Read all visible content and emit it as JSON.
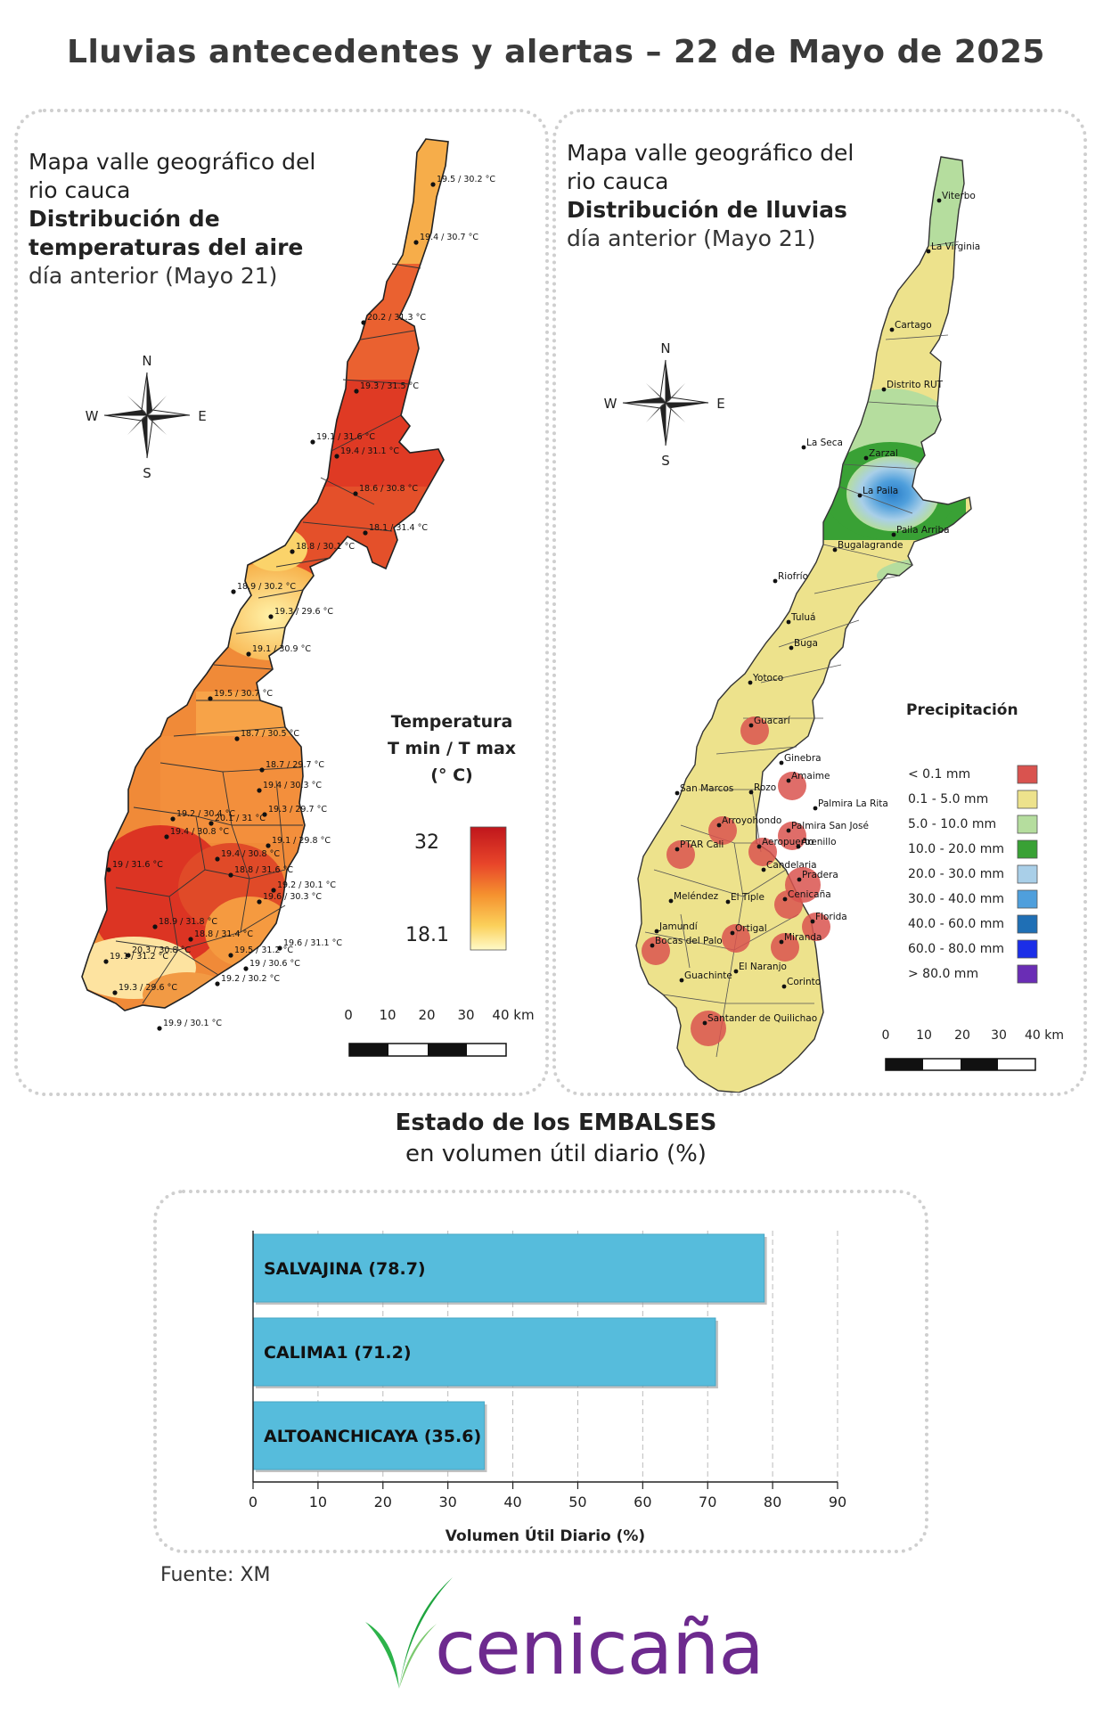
{
  "title": "Lluvias antecedentes y alertas – 22 de Mayo de 2025",
  "left_map": {
    "title_lines": [
      "Mapa valle geográfico del",
      "rio cauca",
      "Distribución de",
      "temperaturas del aire"
    ],
    "subtitle": "día anterior (Mayo 21)",
    "compass": {
      "n": "N",
      "s": "S",
      "e": "E",
      "w": "W"
    },
    "legend": {
      "title_lines": [
        "Temperatura",
        "T min / T max",
        "(° C)"
      ],
      "max": "32",
      "min": "18.1",
      "colors": [
        "#c0161c",
        "#e8452a",
        "#f5912f",
        "#fbd05a",
        "#fffac8"
      ]
    },
    "scale": {
      "labels": [
        "0",
        "10",
        "20",
        "30",
        "40 km"
      ]
    },
    "station_labels": [
      "19.5 / 30.2 °C",
      "19.4 / 30.7 °C",
      "20.2 / 31.3 °C",
      "19.3 / 31.5 °C",
      "19.1 / 31.6 °C",
      "19.4 / 31.1 °C",
      "18.6 / 30.8 °C",
      "18.1 / 31.4 °C",
      "18.8 / 30.1 °C",
      "18.9 / 30.2 °C",
      "19.3 / 29.6 °C",
      "19.1 / 30.9 °C",
      "19.5 / 30.7 °C",
      "18.7 / 30.5 °C",
      "18.7 / 29.7 °C",
      "19.4 / 30.3 °C",
      "19.2 / 30.4 °C",
      "20.1 / 31 °C",
      "19.3 / 29.7 °C",
      "19.4 / 30.8 °C",
      "19.1 / 29.8 °C",
      "19.4 / 30.8 °C",
      "19 / 31.6 °C",
      "18.8 / 31.6 °C",
      "19.2 / 30.1 °C",
      "19.6 / 30.3 °C",
      "18.9 / 31.8 °C",
      "18.8 / 31.4 °C",
      "19.6 / 31.1 °C",
      "20.3 / 30.8 °C",
      "19.5 / 31.2 °C",
      "19.1 / 31.2 °C",
      "19 / 30.6 °C",
      "19.3 / 29.6 °C",
      "19.2 / 30.2 °C",
      "19.9 / 30.1 °C"
    ]
  },
  "right_map": {
    "title_lines": [
      "Mapa valle geográfico del",
      "rio cauca",
      "Distribución de lluvias"
    ],
    "subtitle": "día anterior (Mayo 21)",
    "compass": {
      "n": "N",
      "s": "S",
      "e": "E",
      "w": "W"
    },
    "legend": {
      "title": "Precipitación",
      "items": [
        {
          "label": "< 0.1 mm",
          "color": "#d9534f"
        },
        {
          "label": "0.1 - 5.0 mm",
          "color": "#ede28c"
        },
        {
          "label": "5.0 - 10.0 mm",
          "color": "#b5dd9e"
        },
        {
          "label": "10.0 - 20.0 mm",
          "color": "#39a135"
        },
        {
          "label": "20.0 - 30.0 mm",
          "color": "#a9cfe8"
        },
        {
          "label": "30.0 - 40.0 mm",
          "color": "#4f9fdc"
        },
        {
          "label": "40.0 - 60.0 mm",
          "color": "#1f6fb5"
        },
        {
          "label": "60.0 - 80.0 mm",
          "color": "#1b2ee8"
        },
        {
          "label": "> 80.0 mm",
          "color": "#6a2db5"
        }
      ]
    },
    "scale": {
      "labels": [
        "0",
        "10",
        "20",
        "30",
        "40 km"
      ]
    },
    "stations": [
      "Viterbo",
      "La Virginia",
      "Cartago",
      "Distrito RUT",
      "La Seca",
      "Zarzal",
      "La Paila",
      "Paila Arriba",
      "Bugalagrande",
      "Riofrío",
      "Tuluá",
      "Buga",
      "Yotoco",
      "Guacarí",
      "Ginebra",
      "San Marcos",
      "Rozo",
      "Amaime",
      "Palmira La Rita",
      "Arroyohondo",
      "Palmira San José",
      "Aeropuerto",
      "Arenillo",
      "PTAR Cali",
      "Candelaria",
      "Pradera",
      "Meléndez",
      "El Tiple",
      "Cenicaña",
      "Florida",
      "Jamundí",
      "Bocas del Palo",
      "Ortigal",
      "Miranda",
      "El Naranjo",
      "Guachinte",
      "Corinto",
      "Santander de Quilichao"
    ]
  },
  "reservoirs": {
    "title": "Estado de los EMBALSES",
    "subtitle": "en volumen útil diario (%)",
    "source": "Fuente: XM",
    "chart_data": {
      "type": "bar",
      "orientation": "horizontal",
      "categories": [
        "SALVAJINA (78.7)",
        "CALIMA1 (71.2)",
        "ALTOANCHICAYA (35.6)"
      ],
      "values": [
        78.7,
        71.2,
        35.6
      ],
      "xlabel": "Volumen Útil Diario (%)",
      "xlim": [
        0,
        90
      ],
      "xticks": [
        0,
        10,
        20,
        30,
        40,
        50,
        60,
        70,
        80,
        90
      ],
      "grid": true,
      "bar_color": "#56bcdc"
    }
  },
  "logo": {
    "text": "cenicaña"
  }
}
